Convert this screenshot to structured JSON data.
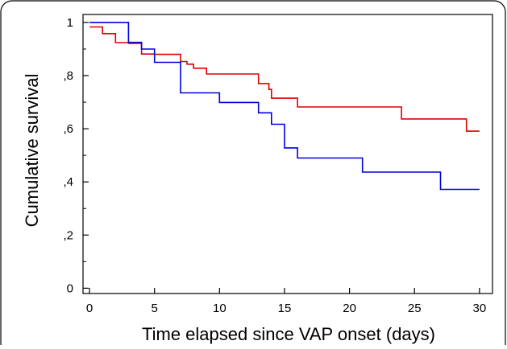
{
  "chart_data": {
    "type": "line",
    "step": true,
    "xlabel": "Time elapsed since VAP onset (days)",
    "ylabel": "Cumulative survival",
    "xlim": [
      -0.5,
      31
    ],
    "ylim": [
      -0.02,
      1.03
    ],
    "x_ticks": [
      0,
      5,
      10,
      15,
      20,
      25,
      30
    ],
    "x_tick_labels": [
      "0",
      "5",
      "10",
      "15",
      "20",
      "25",
      "30"
    ],
    "y_ticks": [
      0,
      0.2,
      0.4,
      0.6,
      0.8,
      1
    ],
    "y_tick_labels": [
      "0",
      ",2",
      ",4",
      ",6",
      ",8",
      "1"
    ],
    "y_minor_ticks": [
      0.1,
      0.3,
      0.5,
      0.7,
      0.9
    ],
    "grid": false,
    "legend": "none",
    "series": [
      {
        "color": "#e00000",
        "x": [
          0,
          1,
          2,
          3,
          4,
          5,
          7,
          7.5,
          8,
          9,
          13,
          13.8,
          14,
          16,
          24,
          29,
          30
        ],
        "y": [
          0.983,
          0.958,
          0.924,
          0.921,
          0.881,
          0.88,
          0.853,
          0.843,
          0.828,
          0.806,
          0.77,
          0.748,
          0.715,
          0.682,
          0.637,
          0.591,
          0.591
        ]
      },
      {
        "color": "#0000e0",
        "x": [
          0,
          3,
          4,
          5,
          7,
          10,
          13,
          14,
          15,
          16,
          21,
          27,
          30
        ],
        "y": [
          1.0,
          0.925,
          0.9,
          0.85,
          0.735,
          0.699,
          0.66,
          0.617,
          0.528,
          0.49,
          0.437,
          0.372,
          0.372
        ]
      }
    ]
  }
}
